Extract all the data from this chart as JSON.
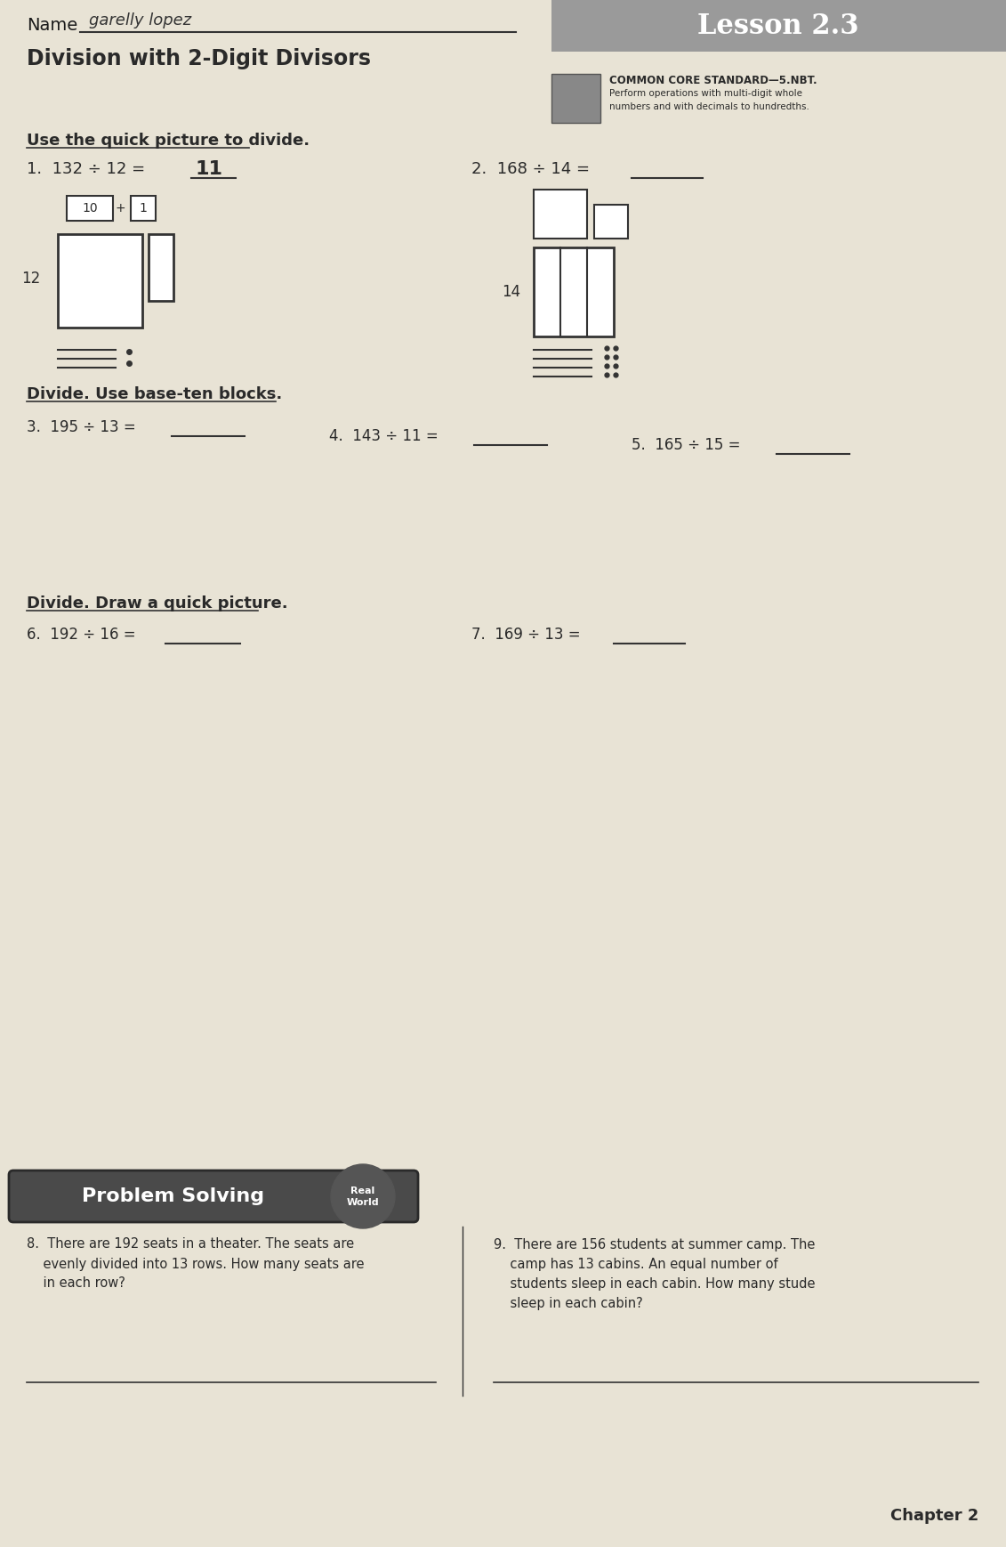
{
  "bg_color": "#d6d0c4",
  "page_bg": "#e8e3d5",
  "title": "Division with 2-Digit Divisors",
  "lesson": "Lesson 2.3",
  "name_label": "Name",
  "name_written": "garelly lopez",
  "common_core_title": "COMMON CORE STANDARD—5.NBT.",
  "common_core_line1": "Perform operations with multi-digit whole",
  "common_core_line2": "numbers and with decimals to hundredths.",
  "section1_title": "Use the quick picture to divide.",
  "q1_text": "1.  132 ÷ 12 =",
  "q1_answer": "11",
  "q2_text": "2.  168 ÷ 14 =",
  "q2_answer": "______",
  "section2_title": "Divide. Use base-ten blocks.",
  "q3_text": "3.  195 ÷ 13 =",
  "q3_answer": "______",
  "q4_text": "4.  143 ÷ 11 =",
  "q4_answer": "______",
  "q5_text": "5.  165 ÷ 15 =",
  "q5_answer": "______",
  "section3_title": "Divide. Draw a quick picture.",
  "q6_text": "6.  192 ÷ 16 =",
  "q6_answer": "______",
  "q7_text": "7.  169 ÷ 13 =",
  "q7_answer": "______",
  "ps_title": "Problem Solving",
  "q8_line1": "8.  There are 192 seats in a theater. The seats are",
  "q8_line2": "    evenly divided into 13 rows. How many seats are",
  "q8_line3": "    in each row?",
  "q9_line1": "9.  There are 156 students at summer camp. The",
  "q9_line2": "    camp has 13 cabins. An equal number of",
  "q9_line3": "    students sleep in each cabin. How many stude",
  "q9_line4": "    sleep in each cabin?",
  "footer": "Chapter 2",
  "text_color": "#1a1a1a",
  "dark_color": "#2a2a2a"
}
